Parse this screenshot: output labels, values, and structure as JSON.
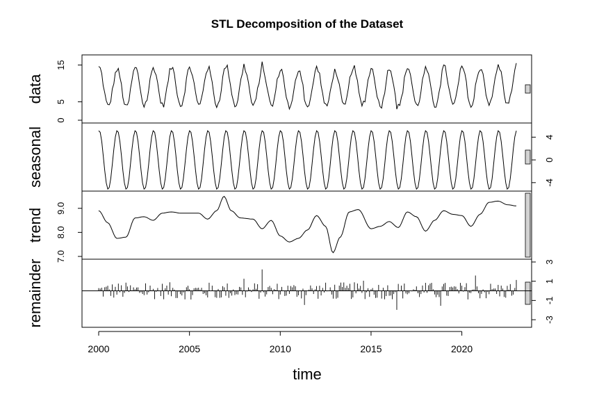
{
  "chart_data": {
    "type": "line",
    "title": "STL Decomposition of the Dataset",
    "xlabel": "time",
    "x_range": [
      2000,
      2023
    ],
    "x_ticks": [
      2000,
      2005,
      2010,
      2015,
      2020
    ],
    "x_tick_labels": [
      "2000",
      "2005",
      "2010",
      "2015",
      "2020"
    ],
    "panels": [
      {
        "name": "data",
        "ylabel": "data",
        "axis_side": "left",
        "ylim": [
          0,
          17
        ],
        "y_ticks": [
          0,
          5,
          15
        ],
        "y_tick_labels": [
          "0",
          "5",
          "15"
        ],
        "style": "line",
        "base": 9,
        "seasonal_amp": 5.4,
        "noise": 1.3
      },
      {
        "name": "seasonal",
        "ylabel": "seasonal",
        "axis_side": "right",
        "ylim": [
          -5,
          6
        ],
        "y_ticks": [
          -4,
          0,
          4
        ],
        "y_tick_labels": [
          "-4",
          "0",
          "4"
        ],
        "style": "line",
        "amplitude": 5.2
      },
      {
        "name": "trend",
        "ylabel": "trend",
        "axis_side": "left",
        "ylim": [
          7.0,
          9.6
        ],
        "y_ticks": [
          7.0,
          8.0,
          9.0
        ],
        "y_tick_labels": [
          "7.0",
          "8.0",
          "9.0"
        ],
        "style": "line",
        "knots_x": [
          2000,
          2000.5,
          2001,
          2001.5,
          2002,
          2002.5,
          2003,
          2003.5,
          2004,
          2004.5,
          2005,
          2005.5,
          2006,
          2006.5,
          2006.9,
          2007.3,
          2007.8,
          2008.5,
          2009,
          2009.5,
          2010,
          2010.5,
          2011,
          2011.5,
          2012,
          2012.5,
          2012.9,
          2013.3,
          2013.8,
          2014.3,
          2015,
          2015.5,
          2016,
          2016.5,
          2017,
          2017.5,
          2018,
          2018.5,
          2019,
          2019.5,
          2020,
          2020.5,
          2021,
          2021.5,
          2022,
          2022.5,
          2023
        ],
        "knots_y": [
          8.9,
          8.4,
          7.75,
          7.8,
          8.6,
          8.65,
          8.5,
          8.8,
          8.85,
          8.8,
          8.8,
          8.8,
          8.55,
          8.9,
          9.5,
          8.9,
          8.6,
          8.55,
          8.15,
          8.5,
          7.85,
          7.6,
          7.75,
          8.1,
          8.7,
          8.25,
          7.15,
          7.8,
          8.85,
          8.95,
          8.15,
          8.25,
          8.45,
          8.2,
          8.85,
          8.65,
          8.05,
          8.5,
          8.9,
          8.75,
          8.7,
          8.25,
          8.75,
          9.25,
          9.3,
          9.15,
          9.1
        ]
      },
      {
        "name": "remainder",
        "ylabel": "remainder",
        "axis_side": "right",
        "ylim": [
          -3.5,
          3
        ],
        "y_ticks": [
          -3,
          -1,
          1,
          3
        ],
        "y_tick_labels": [
          "-3",
          "-1",
          "1",
          "3"
        ],
        "style": "bars",
        "scale": 0.9
      }
    ],
    "seasonal_period_years": 1,
    "sample_step_years": 0.0833333
  }
}
